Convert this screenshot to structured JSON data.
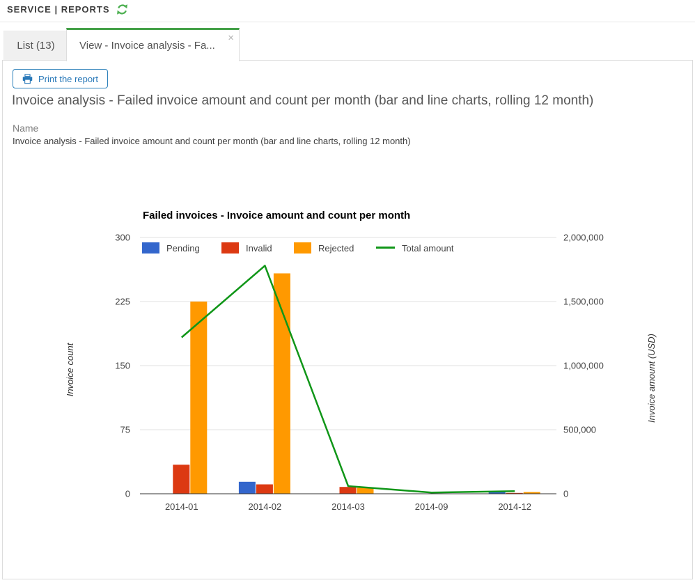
{
  "header": {
    "breadcrumb": "SERVICE | REPORTS",
    "refresh_icon": "refresh-icon",
    "refresh_color": "#4caf50"
  },
  "tabs": [
    {
      "label": "List (13)",
      "active": false
    },
    {
      "label": "View - Invoice analysis - Fa...",
      "active": true,
      "close_icon": "×"
    }
  ],
  "toolbar": {
    "print_label": "Print the report",
    "print_icon": "printer-icon",
    "accent_color": "#2c80ba"
  },
  "report": {
    "title": "Invoice analysis - Failed invoice amount and count per month (bar and line charts, rolling 12 month)",
    "name_label": "Name",
    "name_value": "Invoice analysis - Failed invoice amount and count per month (bar and line charts, rolling 12 month)"
  },
  "chart_data": {
    "type": "bar+line combo",
    "title": "Failed invoices - Invoice amount and count per month",
    "categories": [
      "2014-01",
      "2014-02",
      "2014-03",
      "2014-09",
      "2014-12"
    ],
    "series": [
      {
        "name": "Pending",
        "type": "bar",
        "axis": "left",
        "color": "#3366CC",
        "values": [
          0,
          14,
          0,
          0,
          2
        ]
      },
      {
        "name": "Invalid",
        "type": "bar",
        "axis": "left",
        "color": "#DC3912",
        "values": [
          34,
          11,
          8,
          0,
          1
        ]
      },
      {
        "name": "Rejected",
        "type": "bar",
        "axis": "left",
        "color": "#FF9900",
        "values": [
          225,
          258,
          7,
          0,
          2
        ]
      },
      {
        "name": "Total amount",
        "type": "line",
        "axis": "right",
        "color": "#109618",
        "values": [
          1220000,
          1780000,
          60000,
          10000,
          20000
        ]
      }
    ],
    "left_axis": {
      "label": "Invoice count",
      "ticks": [
        "0",
        "75",
        "150",
        "225",
        "300"
      ],
      "range": [
        0,
        300
      ]
    },
    "right_axis": {
      "label": "Invoice amount (USD)",
      "ticks": [
        "0",
        "500,000",
        "1,000,000",
        "1,500,000",
        "2,000,000"
      ],
      "range": [
        0,
        2000000
      ]
    },
    "grid": true,
    "legend_position": "top-inside"
  }
}
